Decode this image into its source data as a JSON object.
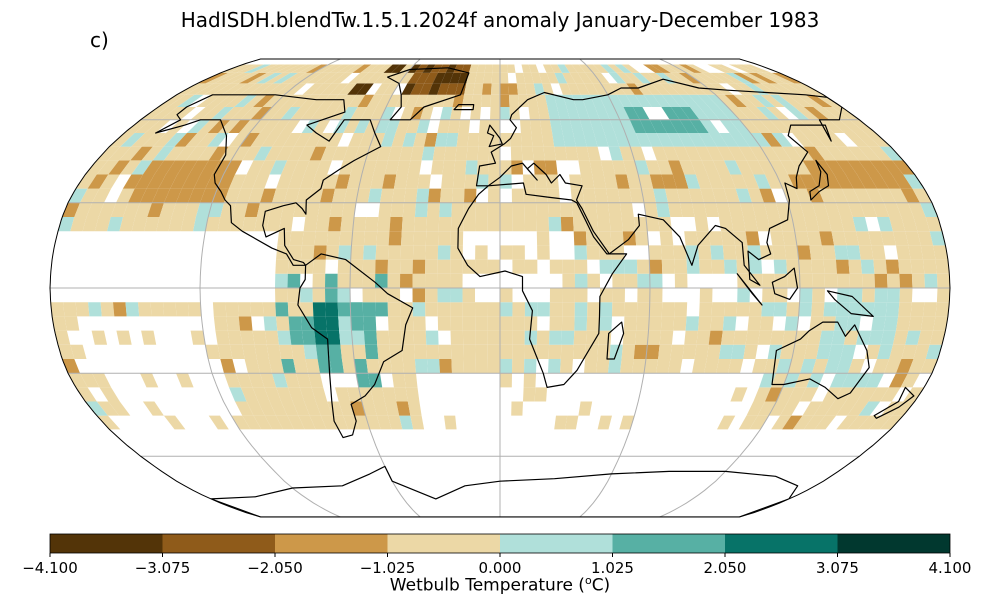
{
  "title": "HadISDH.blendTw.1.5.1.2024f anomaly January-December 1983",
  "panel_label": "c)",
  "projection": "Robinson",
  "graticule": {
    "lon_step_deg": 60,
    "lat_step_deg": 30,
    "color": "#b0b0b0"
  },
  "colorbar": {
    "label_prefix": "Wetbulb Temperature (",
    "label_sup": "o",
    "label_suffix": "C)",
    "ticks": [
      "−4.100",
      "−3.075",
      "−2.050",
      "−1.025",
      "0.000",
      "1.025",
      "2.050",
      "3.075",
      "4.100"
    ],
    "bins": [
      {
        "min": -4.1,
        "max": -3.075,
        "color": "#533408"
      },
      {
        "min": -3.075,
        "max": -2.05,
        "color": "#8f5b1a"
      },
      {
        "min": -2.05,
        "max": -1.025,
        "color": "#cd9849"
      },
      {
        "min": -1.025,
        "max": 0.0,
        "color": "#ecd8a6"
      },
      {
        "min": 0.0,
        "max": 1.025,
        "color": "#b0e0da"
      },
      {
        "min": 1.025,
        "max": 2.05,
        "color": "#57b0a4"
      },
      {
        "min": 2.05,
        "max": 3.075,
        "color": "#077368"
      },
      {
        "min": 3.075,
        "max": 4.1,
        "color": "#01382f"
      }
    ]
  },
  "chart_data": {
    "type": "heatmap",
    "variable": "wet bulb temperature anomaly",
    "period": "January-December 1983",
    "units": "degC",
    "value_range": [
      -4.1,
      4.1
    ],
    "grid_cells_approx": [
      {
        "lon": [
          -180,
          180
        ],
        "lat": [
          -20,
          70
        ],
        "note": "widespread weak negative anomaly (-1.025 to 0) over most land and adjacent ocean"
      },
      {
        "lon": [
          -160,
          -115
        ],
        "lat": [
          25,
          45
        ],
        "value_class": -2,
        "note": "moderate negative, N Pacific / W North America"
      },
      {
        "lon": [
          130,
          175
        ],
        "lat": [
          30,
          45
        ],
        "value_class": -2,
        "note": "moderate negative, NW Pacific"
      },
      {
        "lon": [
          -60,
          -20
        ],
        "lat": [
          65,
          82
        ],
        "value_class": -3,
        "note": "strong negative, Greenland"
      },
      {
        "lon": [
          50,
          115
        ],
        "lat": [
          50,
          70
        ],
        "value_class": 1,
        "note": "positive, central Siberia (up to 1.025-2.05)"
      },
      {
        "lon": [
          -120,
          -45
        ],
        "lat": [
          -40,
          5
        ],
        "value_class": 1,
        "note": "positive, western South America / E Pacific, locally 2.05-3.075"
      },
      {
        "lon": [
          100,
          160
        ],
        "lat": [
          -40,
          0
        ],
        "value_class": 1,
        "note": "weak positive, Australia / Maritime Continent"
      },
      {
        "lon": [
          20,
          60
        ],
        "lat": [
          45,
          65
        ],
        "value_class": 1,
        "note": "weak positive, Eastern Europe / W Russia"
      }
    ]
  }
}
